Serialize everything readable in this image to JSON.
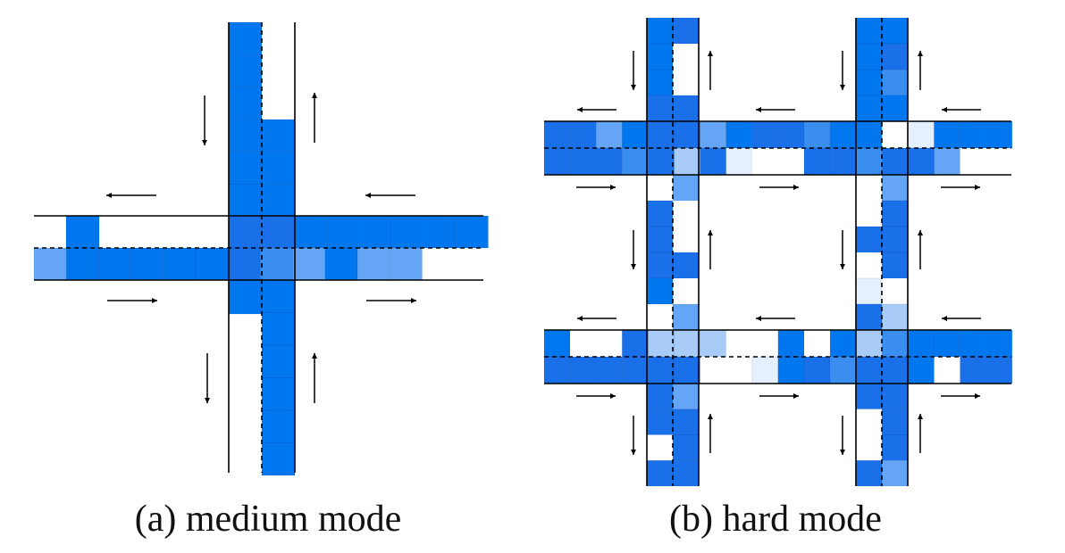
{
  "captions": {
    "a": "(a) medium mode",
    "b": "(b) hard mode"
  },
  "colors": {
    "full": "#0077ee",
    "dark": "#1a70e8",
    "mid": "#3a8ef0",
    "light": "#64a6f5",
    "pale": "#a8cbf8",
    "faint": "#e4f0fd",
    "empty": "#ffffff",
    "line": "#000000"
  },
  "legend_icons": [
    "arrow-left-icon",
    "arrow-right-icon",
    "arrow-up-icon",
    "arrow-down-icon"
  ]
}
